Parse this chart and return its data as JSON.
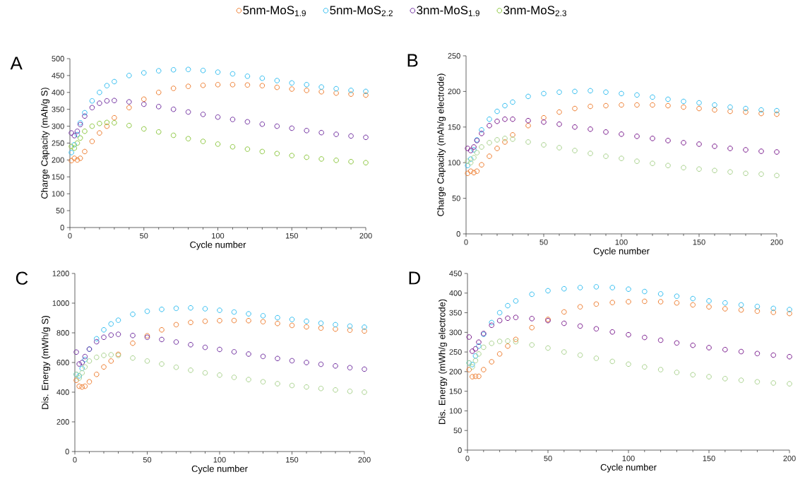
{
  "chart_data": [
    {
      "type": "scatter",
      "title": "A",
      "xlabel": "Cycle number",
      "ylabel": "Charge Capacity (mAh/g S)",
      "marker": "circle",
      "legend": "top",
      "xlim": [
        0,
        200
      ],
      "ylim": [
        0,
        500
      ],
      "xticks": [
        0,
        50,
        100,
        150,
        200
      ],
      "yticks": [
        0,
        50,
        100,
        150,
        200,
        250,
        300,
        350,
        400,
        450,
        500
      ],
      "x": [
        1,
        3,
        5,
        7,
        10,
        15,
        20,
        25,
        30,
        40,
        50,
        60,
        70,
        80,
        90,
        100,
        110,
        120,
        130,
        140,
        150,
        160,
        170,
        180,
        190,
        200
      ],
      "series": [
        {
          "name": "5nm-MoS$_{1.9}$",
          "color": "#ed7d31",
          "values": [
            198,
            205,
            200,
            205,
            225,
            255,
            280,
            300,
            325,
            355,
            380,
            400,
            412,
            418,
            421,
            423,
            423,
            422,
            420,
            415,
            410,
            406,
            402,
            398,
            395,
            392
          ]
        },
        {
          "name": "5nm-MoS$_{2.2}$",
          "color": "#33bdef",
          "values": [
            222,
            245,
            275,
            310,
            340,
            375,
            400,
            420,
            432,
            450,
            458,
            464,
            467,
            468,
            465,
            460,
            455,
            448,
            442,
            435,
            428,
            423,
            416,
            411,
            406,
            403
          ]
        },
        {
          "name": "3nm-MoS$_{1.9}$",
          "color": "#7030a0",
          "values": [
            280,
            272,
            285,
            305,
            330,
            355,
            368,
            375,
            376,
            372,
            365,
            358,
            350,
            342,
            335,
            327,
            320,
            313,
            306,
            300,
            294,
            287,
            281,
            276,
            271,
            267
          ]
        },
        {
          "name": "3nm-MoS$_{2.3}$",
          "color": "#8cc63f",
          "values": [
            240,
            235,
            250,
            265,
            285,
            300,
            308,
            311,
            310,
            302,
            292,
            283,
            273,
            263,
            255,
            247,
            239,
            232,
            225,
            219,
            213,
            208,
            203,
            199,
            195,
            192
          ]
        }
      ]
    },
    {
      "type": "scatter",
      "title": "B",
      "xlabel": "Cycle number",
      "ylabel": "Charge Capacity  (mAh/g electrode)",
      "marker": "circle",
      "xlim": [
        0,
        200
      ],
      "ylim": [
        0,
        250
      ],
      "xticks": [
        0,
        50,
        100,
        150,
        200
      ],
      "yticks": [
        0,
        50,
        100,
        150,
        200,
        250
      ],
      "x": [
        1,
        3,
        5,
        7,
        10,
        15,
        20,
        25,
        30,
        40,
        50,
        60,
        70,
        80,
        90,
        100,
        110,
        120,
        130,
        140,
        150,
        160,
        170,
        180,
        190,
        200
      ],
      "series": [
        {
          "color": "#ed7d31",
          "values": [
            85,
            88,
            86,
            88,
            97,
            109,
            120,
            129,
            139,
            152,
            163,
            171,
            176,
            179,
            180,
            181,
            181,
            181,
            180,
            178,
            176,
            174,
            172,
            171,
            169,
            168
          ]
        },
        {
          "color": "#33bdef",
          "values": [
            96,
            105,
            118,
            132,
            146,
            161,
            172,
            180,
            185,
            193,
            197,
            199,
            200,
            201,
            199,
            197,
            195,
            192,
            189,
            186,
            184,
            181,
            178,
            176,
            174,
            173
          ]
        },
        {
          "color": "#7b1f8f",
          "values": [
            120,
            117,
            122,
            131,
            141,
            152,
            158,
            161,
            161,
            159,
            157,
            154,
            150,
            147,
            143,
            140,
            137,
            134,
            131,
            128,
            126,
            123,
            120,
            118,
            116,
            115
          ]
        },
        {
          "color": "#a9d18e",
          "values": [
            102,
            100,
            107,
            114,
            122,
            128,
            132,
            134,
            133,
            129,
            125,
            121,
            117,
            113,
            109,
            106,
            102,
            99,
            96,
            93,
            91,
            89,
            87,
            85,
            84,
            82
          ]
        }
      ]
    },
    {
      "type": "scatter",
      "title": "C",
      "xlabel": "Cycle number",
      "ylabel": "Dis. Energy (mWh/g S)",
      "marker": "circle",
      "xlim": [
        0,
        200
      ],
      "ylim": [
        0,
        1200
      ],
      "xticks": [
        0,
        50,
        100,
        150,
        200
      ],
      "yticks": [
        0,
        200,
        400,
        600,
        800,
        1000,
        1200
      ],
      "x": [
        1,
        3,
        5,
        7,
        10,
        15,
        20,
        25,
        30,
        40,
        50,
        60,
        70,
        80,
        90,
        100,
        110,
        120,
        130,
        140,
        150,
        160,
        170,
        180,
        190,
        200
      ],
      "series": [
        {
          "color": "#ed7d31",
          "values": [
            480,
            440,
            435,
            440,
            470,
            520,
            570,
            610,
            655,
            730,
            780,
            820,
            855,
            870,
            878,
            882,
            883,
            882,
            875,
            863,
            850,
            840,
            832,
            825,
            818,
            812
          ]
        },
        {
          "color": "#33bdef",
          "values": [
            520,
            510,
            560,
            620,
            690,
            760,
            820,
            860,
            885,
            925,
            945,
            958,
            965,
            968,
            962,
            952,
            940,
            928,
            915,
            902,
            890,
            878,
            865,
            855,
            845,
            838
          ]
        },
        {
          "color": "#7030a0",
          "values": [
            670,
            590,
            600,
            640,
            690,
            740,
            770,
            785,
            790,
            782,
            770,
            755,
            738,
            720,
            702,
            688,
            672,
            657,
            641,
            627,
            612,
            600,
            588,
            577,
            565,
            555
          ]
        },
        {
          "color": "#a9d18e",
          "values": [
            520,
            495,
            530,
            570,
            610,
            635,
            648,
            652,
            648,
            630,
            610,
            590,
            568,
            548,
            530,
            515,
            500,
            485,
            470,
            457,
            445,
            435,
            425,
            415,
            406,
            400
          ]
        }
      ]
    },
    {
      "type": "scatter",
      "title": "D",
      "xlabel": "Cycle number",
      "ylabel": "Dis. Energy (mWh/g electrode)",
      "marker": "circle",
      "xlim": [
        0,
        200
      ],
      "ylim": [
        0,
        450
      ],
      "xticks": [
        0,
        50,
        100,
        150,
        200
      ],
      "yticks": [
        0,
        50,
        100,
        150,
        200,
        250,
        300,
        350,
        400,
        450
      ],
      "x": [
        1,
        3,
        5,
        7,
        10,
        15,
        20,
        25,
        30,
        40,
        50,
        60,
        70,
        80,
        90,
        100,
        110,
        120,
        130,
        140,
        150,
        160,
        170,
        180,
        190,
        200
      ],
      "series": [
        {
          "color": "#ed7d31",
          "values": [
            205,
            187,
            188,
            188,
            205,
            225,
            245,
            265,
            282,
            312,
            333,
            352,
            365,
            372,
            376,
            378,
            379,
            378,
            375,
            370,
            365,
            360,
            357,
            354,
            351,
            348
          ]
        },
        {
          "color": "#33bdef",
          "values": [
            222,
            218,
            240,
            265,
            295,
            325,
            350,
            368,
            380,
            397,
            406,
            411,
            414,
            416,
            414,
            410,
            404,
            398,
            392,
            386,
            380,
            375,
            370,
            366,
            361,
            358
          ]
        },
        {
          "color": "#7b1f8f",
          "values": [
            288,
            252,
            258,
            275,
            297,
            318,
            330,
            336,
            338,
            335,
            330,
            323,
            316,
            309,
            301,
            294,
            287,
            280,
            273,
            267,
            261,
            256,
            251,
            246,
            242,
            238
          ]
        },
        {
          "color": "#a9d18e",
          "values": [
            222,
            212,
            228,
            245,
            262,
            272,
            277,
            278,
            276,
            268,
            260,
            250,
            242,
            234,
            226,
            219,
            212,
            205,
            198,
            192,
            187,
            182,
            178,
            174,
            171,
            169
          ]
        }
      ]
    }
  ]
}
